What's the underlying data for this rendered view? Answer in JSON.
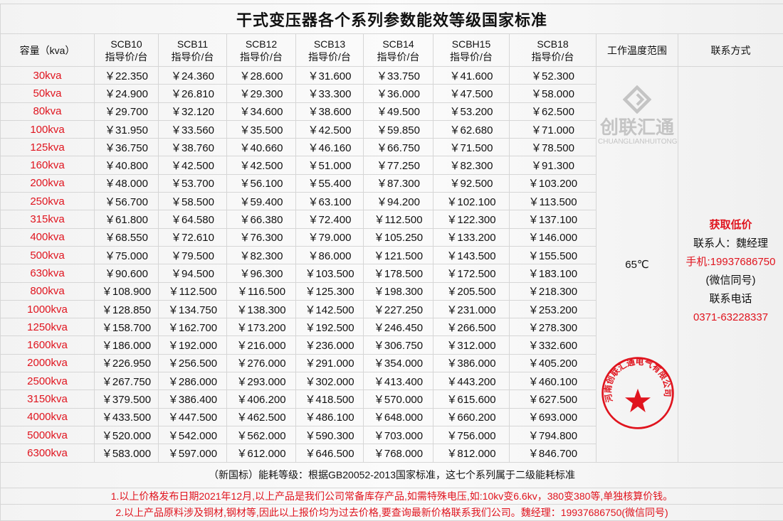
{
  "title": "干式变压器各个系列参数能效等级国家标准",
  "headers": {
    "capacity": "容量（kva）",
    "series": [
      "SCB10",
      "SCB11",
      "SCB12",
      "SCB13",
      "SCB14",
      "SCBH15",
      "SCB18"
    ],
    "price_unit": "指导价/台",
    "temp": "工作温度范围",
    "contact": "联系方式"
  },
  "rows": [
    [
      "30kva",
      "￥22.350",
      "￥24.360",
      "￥28.600",
      "￥31.600",
      "￥33.750",
      "￥41.600",
      "￥52.300"
    ],
    [
      "50kva",
      "￥24.900",
      "￥26.810",
      "￥29.300",
      "￥33.300",
      "￥36.000",
      "￥47.500",
      "￥58.000"
    ],
    [
      "80kva",
      "￥29.700",
      "￥32.120",
      "￥34.600",
      "￥38.600",
      "￥49.500",
      "￥53.200",
      "￥62.500"
    ],
    [
      "100kva",
      "￥31.950",
      "￥33.560",
      "￥35.500",
      "￥42.500",
      "￥59.850",
      "￥62.680",
      "￥71.000"
    ],
    [
      "125kva",
      "￥36.750",
      "￥38.760",
      "￥40.660",
      "￥46.160",
      "￥66.750",
      "￥71.500",
      "￥78.500"
    ],
    [
      "160kva",
      "￥40.800",
      "￥42.500",
      "￥42.500",
      "￥51.000",
      "￥77.250",
      "￥82.300",
      "￥91.300"
    ],
    [
      "200kva",
      "￥48.000",
      "￥53.700",
      "￥56.100",
      "￥55.400",
      "￥87.300",
      "￥92.500",
      "￥103.200"
    ],
    [
      "250kva",
      "￥56.700",
      "￥58.500",
      "￥59.400",
      "￥63.100",
      "￥94.200",
      "￥102.100",
      "￥113.500"
    ],
    [
      "315kva",
      "￥61.800",
      "￥64.580",
      "￥66.380",
      "￥72.400",
      "￥112.500",
      "￥122.300",
      "￥137.100"
    ],
    [
      "400kva",
      "￥68.550",
      "￥72.610",
      "￥76.300",
      "￥79.000",
      "￥105.250",
      "￥133.200",
      "￥146.000"
    ],
    [
      "500kva",
      "￥75.000",
      "￥79.500",
      "￥82.300",
      "￥86.000",
      "￥121.500",
      "￥143.500",
      "￥155.500"
    ],
    [
      "630kva",
      "￥90.600",
      "￥94.500",
      "￥96.300",
      "￥103.500",
      "￥178.500",
      "￥172.500",
      "￥183.100"
    ],
    [
      "800kva",
      "￥108.900",
      "￥112.500",
      "￥116.500",
      "￥125.300",
      "￥198.300",
      "￥205.500",
      "￥218.300"
    ],
    [
      "1000kva",
      "￥128.850",
      "￥134.750",
      "￥138.300",
      "￥142.500",
      "￥227.250",
      "￥231.000",
      "￥253.200"
    ],
    [
      "1250kva",
      "￥158.700",
      "￥162.700",
      "￥173.200",
      "￥192.500",
      "￥246.450",
      "￥266.500",
      "￥278.300"
    ],
    [
      "1600kva",
      "￥186.000",
      "￥192.000",
      "￥216.000",
      "￥236.000",
      "￥306.750",
      "￥312.000",
      "￥332.600"
    ],
    [
      "2000kva",
      "￥226.950",
      "￥256.500",
      "￥276.000",
      "￥291.000",
      "￥354.000",
      "￥386.000",
      "￥405.200"
    ],
    [
      "2500kva",
      "￥267.750",
      "￥286.000",
      "￥293.000",
      "￥302.000",
      "￥413.400",
      "￥443.200",
      "￥460.100"
    ],
    [
      "3150kva",
      "￥379.500",
      "￥386.400",
      "￥406.200",
      "￥418.500",
      "￥570.000",
      "￥615.600",
      "￥627.500"
    ],
    [
      "4000kva",
      "￥433.500",
      "￥447.500",
      "￥462.500",
      "￥486.100",
      "￥648.000",
      "￥660.200",
      "￥693.000"
    ],
    [
      "5000kva",
      "￥520.000",
      "￥542.000",
      "￥562.000",
      "￥590.300",
      "￥703.000",
      "￥756.000",
      "￥794.800"
    ],
    [
      "6300kva",
      "￥583.000",
      "￥597.000",
      "￥612.000",
      "￥646.500",
      "￥768.000",
      "￥812.000",
      "￥846.700"
    ]
  ],
  "temp_value": "65℃",
  "contact": {
    "cta": "获取低价",
    "person": "联系人：魏经理",
    "mobile": "手机:19937686750",
    "wechat": "(微信同号)",
    "phone_label": "联系电话",
    "phone": "0371-63228337"
  },
  "standard_note": "（新国标）能耗等级：根据GB20052-2013国家标准，这七个系列属于二级能耗标准",
  "notes": [
    "1.以上价格发布日期2021年12月,以上产品是我们公司常备库存产品,如需特殊电压,如:10kv变6.6kv，380变380等,单独核算价钱。",
    "2.以上产品原料涉及铜材,钢材等,因此以上报价均为过去价格,要查询最新价格联系我们公司。魏经理：19937686750(微信同号)"
  ],
  "watermark": {
    "cn": "创联汇通",
    "en": "CHUANGLIANHUITONG"
  },
  "seal": {
    "text": "河南创联汇通电气有限公司",
    "color": "#e0141e"
  },
  "colors": {
    "accent": "#e0141e"
  }
}
